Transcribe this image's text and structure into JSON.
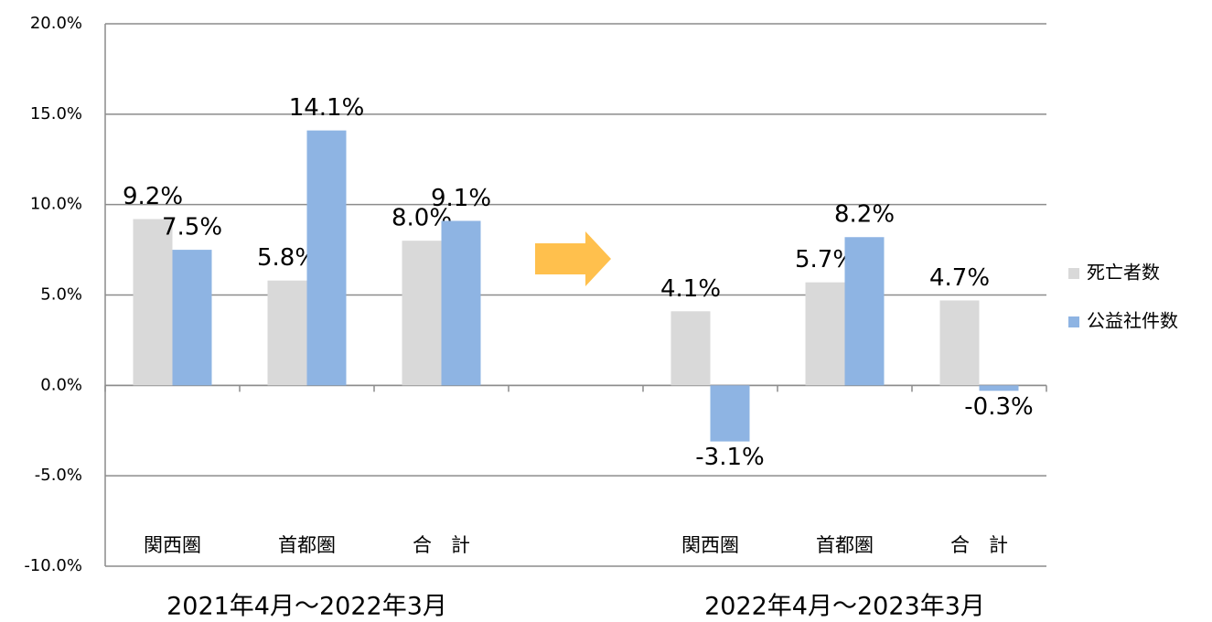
{
  "chart_data": {
    "type": "bar",
    "categories": [
      "関西圏",
      "首都圏",
      "合　計",
      null,
      "関西圏",
      "首都圏",
      "合　計"
    ],
    "period_labels": [
      "2021年4月～2022年3月",
      "2022年4月～2023年3月"
    ],
    "series": [
      {
        "name": "死亡者数",
        "color": "#d9d9d9",
        "values": [
          9.2,
          5.8,
          8.0,
          null,
          4.1,
          5.7,
          4.7
        ],
        "value_labels": [
          "9.2%",
          "5.8%",
          "8.0%",
          null,
          "4.1%",
          "5.7%",
          "4.7%"
        ]
      },
      {
        "name": "公益社件数",
        "color": "#8eb4e3",
        "values": [
          7.5,
          14.1,
          9.1,
          null,
          -3.1,
          8.2,
          -0.3
        ],
        "value_labels": [
          "7.5%",
          "14.1%",
          "9.1%",
          null,
          "-3.1%",
          "8.2%",
          "-0.3%"
        ]
      }
    ],
    "negative_label_color": "#ff0000",
    "ylim": [
      -10,
      20
    ],
    "yticks": [
      {
        "value": -10,
        "label": "-10.0%"
      },
      {
        "value": -5,
        "label": "-5.0%"
      },
      {
        "value": 0,
        "label": "0.0%"
      },
      {
        "value": 5,
        "label": "5.0%"
      },
      {
        "value": 10,
        "label": "10.0%"
      },
      {
        "value": 15,
        "label": "15.0%"
      },
      {
        "value": 20,
        "label": "20.0%"
      }
    ],
    "grid": true,
    "legend": "right"
  }
}
